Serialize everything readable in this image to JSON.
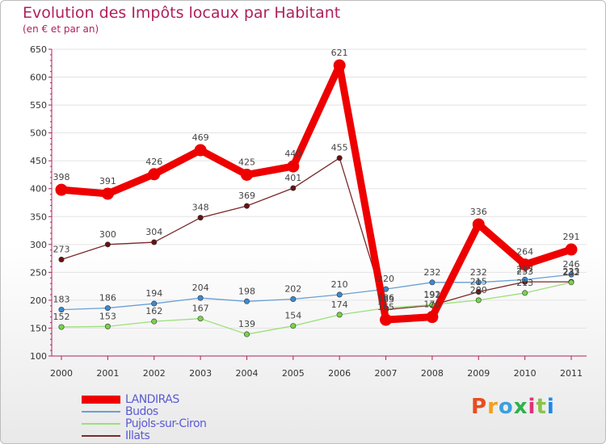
{
  "header": {
    "title": "Evolution des Impôts locaux par Habitant",
    "subtitle": "(en € et par an)"
  },
  "brand": {
    "text": "Proxiti",
    "colors": [
      "#e74c1f",
      "#f0a020",
      "#3aa0e0",
      "#2bb34a",
      "#e0307a",
      "#8bc34a",
      "#1e88e5"
    ]
  },
  "chart_data": {
    "type": "line",
    "categories": [
      "2000",
      "2001",
      "2002",
      "2003",
      "2004",
      "2005",
      "2006",
      "2007",
      "2008",
      "2009",
      "2010",
      "2011"
    ],
    "y_ticks": [
      100,
      150,
      200,
      250,
      300,
      350,
      400,
      450,
      500,
      550,
      600,
      650
    ],
    "ylim": [
      100,
      650
    ],
    "grid": "horizontal",
    "legend_position": "bottom-left",
    "series": [
      {
        "name": "LANDIRAS",
        "color": "#ee0000",
        "marker": "#ee0000",
        "values": [
          398,
          391,
          426,
          469,
          425,
          440,
          621,
          165,
          170,
          336,
          264,
          291
        ],
        "labels": [
          "398",
          "391",
          "426",
          "469",
          "425",
          "440",
          "621",
          "165",
          "170",
          "336",
          "264",
          "291"
        ]
      },
      {
        "name": "Budos",
        "color": "#6a9fd4",
        "marker": "#3c8ad0",
        "values": [
          183,
          186,
          194,
          204,
          198,
          202,
          210,
          220,
          232,
          232,
          237,
          246
        ],
        "labels": [
          "183",
          "186",
          "194",
          "204",
          "198",
          "202",
          "210",
          "220",
          "232",
          "232",
          "237",
          "246"
        ]
      },
      {
        "name": "Pujols-sur-Ciron",
        "color": "#9be07a",
        "marker": "#77d44a",
        "values": [
          152,
          153,
          162,
          167,
          139,
          154,
          174,
          186,
          192,
          200,
          213,
          232
        ],
        "labels": [
          "152",
          "153",
          "162",
          "167",
          "139",
          "154",
          "174",
          "186",
          "192",
          "200",
          "213",
          "232"
        ]
      },
      {
        "name": "Illats",
        "color": "#7a2a2a",
        "marker": "#6a1010",
        "values": [
          273,
          300,
          304,
          348,
          369,
          401,
          455,
          183,
          191,
          215,
          233,
          233
        ],
        "labels": [
          "273",
          "300",
          "304",
          "348",
          "369",
          "401",
          "455",
          "183",
          "191",
          "215",
          "233",
          "233"
        ]
      }
    ]
  }
}
